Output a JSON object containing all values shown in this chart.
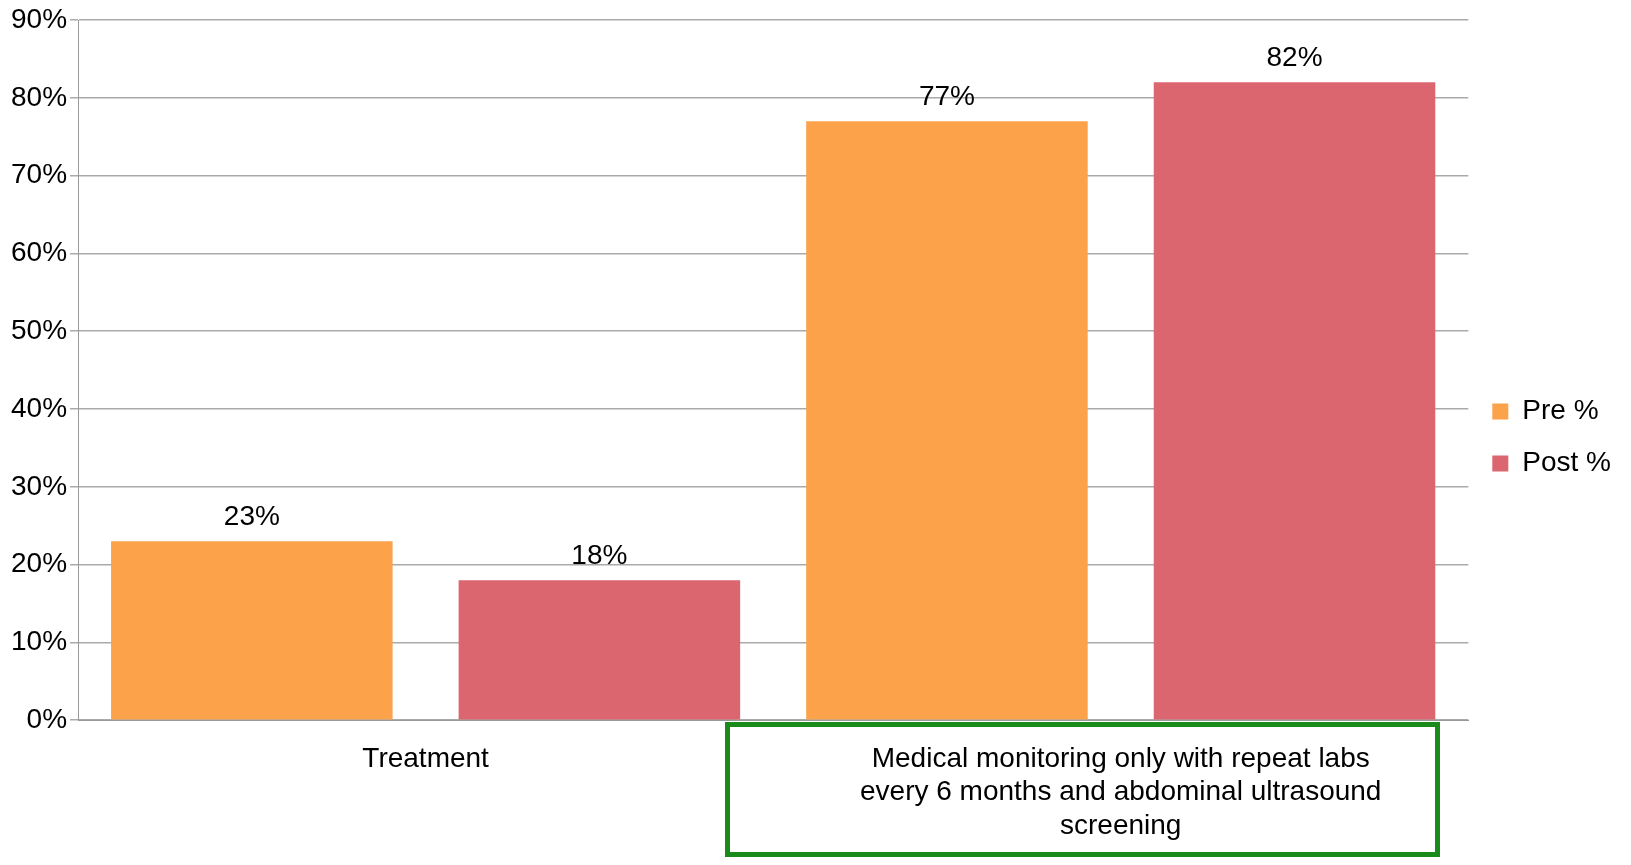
{
  "chart_data": {
    "type": "bar",
    "categories": [
      "Treatment",
      "Medical monitoring only with repeat labs every 6 months and abdominal ultrasound screening"
    ],
    "series": [
      {
        "name": "Pre %",
        "color": "#fca24a",
        "values": [
          23,
          77
        ]
      },
      {
        "name": "Post %",
        "color": "#db6670",
        "values": [
          18,
          82
        ]
      }
    ],
    "ylim": [
      0,
      90
    ],
    "yticks": [
      {
        "value": 0,
        "label": "0%"
      },
      {
        "value": 10,
        "label": "10%"
      },
      {
        "value": 20,
        "label": "20%"
      },
      {
        "value": 30,
        "label": "30%"
      },
      {
        "value": 40,
        "label": "40%"
      },
      {
        "value": 50,
        "label": "50%"
      },
      {
        "value": 60,
        "label": "60%"
      },
      {
        "value": 70,
        "label": "70%"
      },
      {
        "value": 80,
        "label": "80%"
      },
      {
        "value": 90,
        "label": "90%"
      }
    ],
    "value_labels": [
      [
        "23%",
        "77%"
      ],
      [
        "18%",
        "82%"
      ]
    ],
    "grid": "y",
    "legend": "right"
  }
}
